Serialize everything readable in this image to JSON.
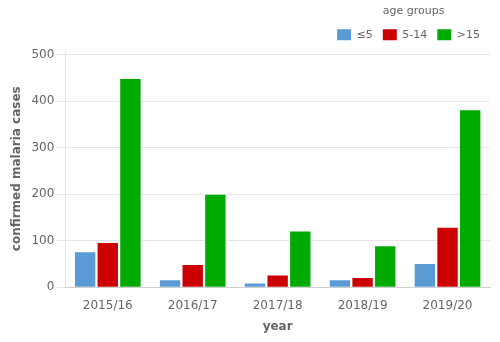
{
  "chart_data": {
    "type": "bar",
    "categories": [
      "2015/16",
      "2016/17",
      "2017/18",
      "2018/19",
      "2019/20"
    ],
    "series": [
      {
        "name": "≤5",
        "color": "#5b9bd5",
        "values": [
          75,
          15,
          8,
          15,
          50
        ]
      },
      {
        "name": "5-14",
        "color": "#cc0000",
        "values": [
          95,
          48,
          25,
          20,
          128
        ]
      },
      {
        "name": ">15",
        "color": "#00aa00",
        "values": [
          448,
          199,
          120,
          88,
          381
        ]
      }
    ],
    "xlabel": "year",
    "ylabel": "confirmed malaria cases",
    "legend_title": "age groups",
    "ylim": [
      0,
      510
    ],
    "yticks": [
      0,
      100,
      200,
      300,
      400,
      500
    ],
    "grid": true,
    "legend": "upper right"
  }
}
